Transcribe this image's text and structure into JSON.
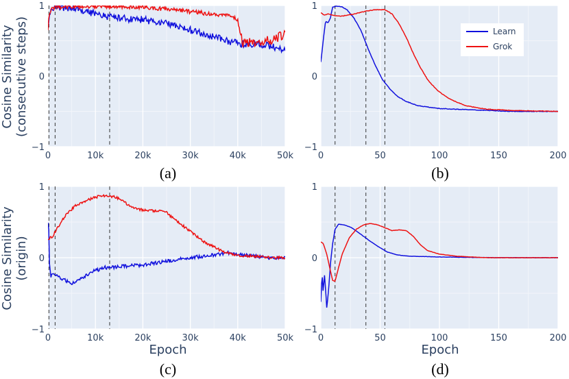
{
  "colors": {
    "learn": "#1010dd",
    "grok": "#ee1111",
    "plot_bg": "#e5ecf6",
    "grid": "#ffffff",
    "vline": "#333333"
  },
  "y_labels": {
    "top": [
      "Cosine Similarity",
      "(consecutive steps)"
    ],
    "bottom": [
      "Cosine Similarity",
      "(origin)"
    ]
  },
  "x_label": "Epoch",
  "legend": {
    "learn": "Learn",
    "grok": "Grok"
  },
  "chart_data": [
    {
      "id": "a",
      "panel_label": "(a)",
      "type": "line",
      "xlim": [
        0,
        50000
      ],
      "ylim": [
        -1,
        1
      ],
      "x_ticks": [
        0,
        10000,
        20000,
        30000,
        40000,
        50000
      ],
      "x_tick_labels": [
        "0",
        "10k",
        "20k",
        "30k",
        "40k",
        "50k"
      ],
      "y_ticks": [
        -1,
        0,
        1
      ],
      "y_tick_labels": [
        "−1",
        "0",
        "1"
      ],
      "vlines": [
        200,
        1500,
        13000
      ],
      "noise_seed": 11,
      "series": [
        {
          "name": "Learn",
          "points": [
            [
              0,
              0.66
            ],
            [
              200,
              0.85
            ],
            [
              700,
              0.96
            ],
            [
              2000,
              0.97
            ],
            [
              5000,
              0.96
            ],
            [
              8000,
              0.92
            ],
            [
              11000,
              0.86
            ],
            [
              15000,
              0.82
            ],
            [
              20000,
              0.8
            ],
            [
              25000,
              0.74
            ],
            [
              30000,
              0.65
            ],
            [
              35000,
              0.55
            ],
            [
              40000,
              0.46
            ],
            [
              45000,
              0.45
            ],
            [
              50000,
              0.38
            ]
          ],
          "noise": 0.05
        },
        {
          "name": "Grok",
          "points": [
            [
              0,
              0.64
            ],
            [
              200,
              0.84
            ],
            [
              700,
              0.96
            ],
            [
              2000,
              0.98
            ],
            [
              8000,
              0.99
            ],
            [
              15000,
              0.99
            ],
            [
              20000,
              0.97
            ],
            [
              25000,
              0.95
            ],
            [
              30000,
              0.91
            ],
            [
              35000,
              0.88
            ],
            [
              39000,
              0.84
            ],
            [
              40000,
              0.78
            ],
            [
              41000,
              0.47
            ],
            [
              44000,
              0.48
            ],
            [
              47000,
              0.52
            ],
            [
              50000,
              0.58
            ]
          ],
          "noise": 0.03,
          "noise_after": 40500,
          "noise_late": 0.07
        }
      ]
    },
    {
      "id": "b",
      "panel_label": "(b)",
      "type": "line",
      "xlim": [
        0,
        200
      ],
      "ylim": [
        -1,
        1
      ],
      "x_ticks": [
        0,
        50,
        100,
        150,
        200
      ],
      "x_tick_labels": [
        "0",
        "50",
        "100",
        "150",
        "200"
      ],
      "y_ticks": [
        -1,
        0,
        1
      ],
      "y_tick_labels": [
        "−1",
        "0",
        "1"
      ],
      "vlines": [
        12,
        38,
        54
      ],
      "series": [
        {
          "name": "Learn",
          "points": [
            [
              0,
              0.2
            ],
            [
              2,
              0.5
            ],
            [
              4,
              0.78
            ],
            [
              6,
              0.75
            ],
            [
              8,
              0.82
            ],
            [
              10,
              0.98
            ],
            [
              14,
              0.99
            ],
            [
              18,
              0.98
            ],
            [
              22,
              0.94
            ],
            [
              28,
              0.82
            ],
            [
              34,
              0.64
            ],
            [
              40,
              0.38
            ],
            [
              46,
              0.15
            ],
            [
              52,
              -0.05
            ],
            [
              58,
              -0.18
            ],
            [
              64,
              -0.28
            ],
            [
              72,
              -0.36
            ],
            [
              82,
              -0.42
            ],
            [
              100,
              -0.46
            ],
            [
              130,
              -0.48
            ],
            [
              160,
              -0.5
            ],
            [
              200,
              -0.5
            ]
          ],
          "noise": 0.004
        },
        {
          "name": "Grok",
          "points": [
            [
              0,
              0.9
            ],
            [
              3,
              0.86
            ],
            [
              6,
              0.88
            ],
            [
              10,
              0.86
            ],
            [
              18,
              0.85
            ],
            [
              28,
              0.88
            ],
            [
              38,
              0.92
            ],
            [
              46,
              0.94
            ],
            [
              54,
              0.94
            ],
            [
              60,
              0.88
            ],
            [
              66,
              0.74
            ],
            [
              72,
              0.55
            ],
            [
              78,
              0.32
            ],
            [
              84,
              0.12
            ],
            [
              90,
              -0.05
            ],
            [
              98,
              -0.2
            ],
            [
              108,
              -0.32
            ],
            [
              122,
              -0.42
            ],
            [
              140,
              -0.47
            ],
            [
              165,
              -0.49
            ],
            [
              200,
              -0.5
            ]
          ],
          "noise": 0.004
        }
      ]
    },
    {
      "id": "c",
      "panel_label": "(c)",
      "type": "line",
      "xlim": [
        0,
        50000
      ],
      "ylim": [
        -1,
        1
      ],
      "x_ticks": [
        0,
        10000,
        20000,
        30000,
        40000,
        50000
      ],
      "x_tick_labels": [
        "0",
        "10k",
        "20k",
        "30k",
        "40k",
        "50k"
      ],
      "y_ticks": [
        -1,
        0,
        1
      ],
      "y_tick_labels": [
        "−1",
        "0",
        "1"
      ],
      "vlines": [
        200,
        1500,
        13000
      ],
      "noise_seed": 29,
      "series": [
        {
          "name": "Learn",
          "points": [
            [
              0,
              0.5
            ],
            [
              150,
              0.42
            ],
            [
              300,
              -0.1
            ],
            [
              600,
              -0.26
            ],
            [
              1500,
              -0.22
            ],
            [
              3000,
              -0.3
            ],
            [
              5000,
              -0.36
            ],
            [
              7000,
              -0.3
            ],
            [
              9000,
              -0.2
            ],
            [
              12000,
              -0.14
            ],
            [
              16000,
              -0.12
            ],
            [
              20000,
              -0.1
            ],
            [
              25000,
              -0.05
            ],
            [
              30000,
              0.0
            ],
            [
              35000,
              0.04
            ],
            [
              38000,
              0.07
            ],
            [
              42000,
              0.03
            ],
            [
              46000,
              0.0
            ],
            [
              50000,
              0.0
            ]
          ],
          "noise": 0.025
        },
        {
          "name": "Grok",
          "points": [
            [
              0,
              0.26
            ],
            [
              1000,
              0.3
            ],
            [
              2000,
              0.42
            ],
            [
              4000,
              0.62
            ],
            [
              6000,
              0.74
            ],
            [
              8000,
              0.8
            ],
            [
              10000,
              0.85
            ],
            [
              12000,
              0.87
            ],
            [
              13000,
              0.87
            ],
            [
              15000,
              0.83
            ],
            [
              17000,
              0.74
            ],
            [
              19000,
              0.68
            ],
            [
              21000,
              0.66
            ],
            [
              23000,
              0.66
            ],
            [
              25000,
              0.63
            ],
            [
              27000,
              0.52
            ],
            [
              29000,
              0.42
            ],
            [
              31000,
              0.32
            ],
            [
              33000,
              0.22
            ],
            [
              35000,
              0.15
            ],
            [
              37000,
              0.08
            ],
            [
              40000,
              0.03
            ],
            [
              44000,
              0.02
            ],
            [
              47000,
              0.0
            ],
            [
              50000,
              0.0
            ]
          ],
          "noise": 0.018
        }
      ]
    },
    {
      "id": "d",
      "panel_label": "(d)",
      "type": "line",
      "xlim": [
        0,
        200
      ],
      "ylim": [
        -1,
        1
      ],
      "x_ticks": [
        0,
        50,
        100,
        150,
        200
      ],
      "x_tick_labels": [
        "0",
        "50",
        "100",
        "150",
        "200"
      ],
      "y_ticks": [
        -1,
        0,
        1
      ],
      "y_tick_labels": [
        "−1",
        "0",
        "1"
      ],
      "vlines": [
        12,
        38,
        54
      ],
      "series": [
        {
          "name": "Learn",
          "points": [
            [
              0,
              -0.62
            ],
            [
              1,
              -0.2
            ],
            [
              2,
              -0.5
            ],
            [
              3,
              -0.22
            ],
            [
              4,
              -0.45
            ],
            [
              5,
              -0.7
            ],
            [
              6,
              -0.55
            ],
            [
              7,
              -0.35
            ],
            [
              8,
              -0.1
            ],
            [
              10,
              0.2
            ],
            [
              12,
              0.4
            ],
            [
              15,
              0.47
            ],
            [
              20,
              0.46
            ],
            [
              26,
              0.42
            ],
            [
              32,
              0.35
            ],
            [
              40,
              0.25
            ],
            [
              48,
              0.16
            ],
            [
              56,
              0.08
            ],
            [
              64,
              0.04
            ],
            [
              75,
              0.02
            ],
            [
              100,
              0.01
            ],
            [
              150,
              0.0
            ],
            [
              200,
              0.0
            ]
          ],
          "noise": 0.002
        },
        {
          "name": "Grok",
          "points": [
            [
              0,
              0.22
            ],
            [
              2,
              0.2
            ],
            [
              5,
              0.05
            ],
            [
              8,
              -0.18
            ],
            [
              10,
              -0.32
            ],
            [
              12,
              -0.33
            ],
            [
              14,
              -0.2
            ],
            [
              18,
              0.05
            ],
            [
              24,
              0.28
            ],
            [
              30,
              0.4
            ],
            [
              36,
              0.46
            ],
            [
              42,
              0.48
            ],
            [
              48,
              0.46
            ],
            [
              54,
              0.42
            ],
            [
              60,
              0.38
            ],
            [
              66,
              0.39
            ],
            [
              72,
              0.38
            ],
            [
              78,
              0.3
            ],
            [
              84,
              0.18
            ],
            [
              90,
              0.1
            ],
            [
              100,
              0.05
            ],
            [
              115,
              0.02
            ],
            [
              140,
              0.0
            ],
            [
              200,
              0.0
            ]
          ],
          "noise": 0.002
        }
      ]
    }
  ]
}
